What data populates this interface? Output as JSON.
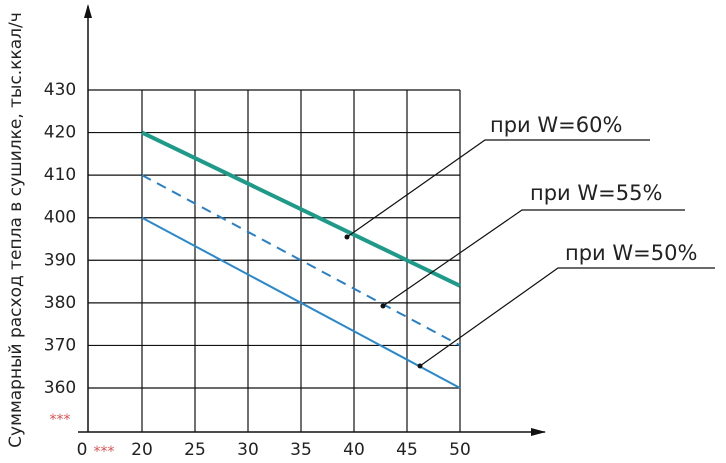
{
  "chart_data": {
    "type": "line",
    "y_label": "Суммарный расход тепла в сушилке, тыс.ккал/ч",
    "x_origin_label": "0",
    "axis_break_mark": "***",
    "x": [
      20,
      50
    ],
    "series": [
      {
        "name": "при W=60%",
        "color": "#1e9a88",
        "style": "solid",
        "width": 4,
        "values": [
          420,
          384
        ]
      },
      {
        "name": "при W=55%",
        "color": "#2a80c4",
        "style": "dashed",
        "width": 2,
        "values": [
          410,
          370
        ]
      },
      {
        "name": "при W=50%",
        "color": "#2a88cc",
        "style": "solid",
        "width": 2,
        "values": [
          400,
          360
        ]
      }
    ],
    "xlim": [
      20,
      50
    ],
    "xticks": [
      20,
      25,
      30,
      35,
      40,
      45,
      50
    ],
    "ylim": [
      360,
      430
    ],
    "yticks": [
      360,
      370,
      380,
      390,
      400,
      410,
      420,
      430
    ],
    "grid": true
  }
}
